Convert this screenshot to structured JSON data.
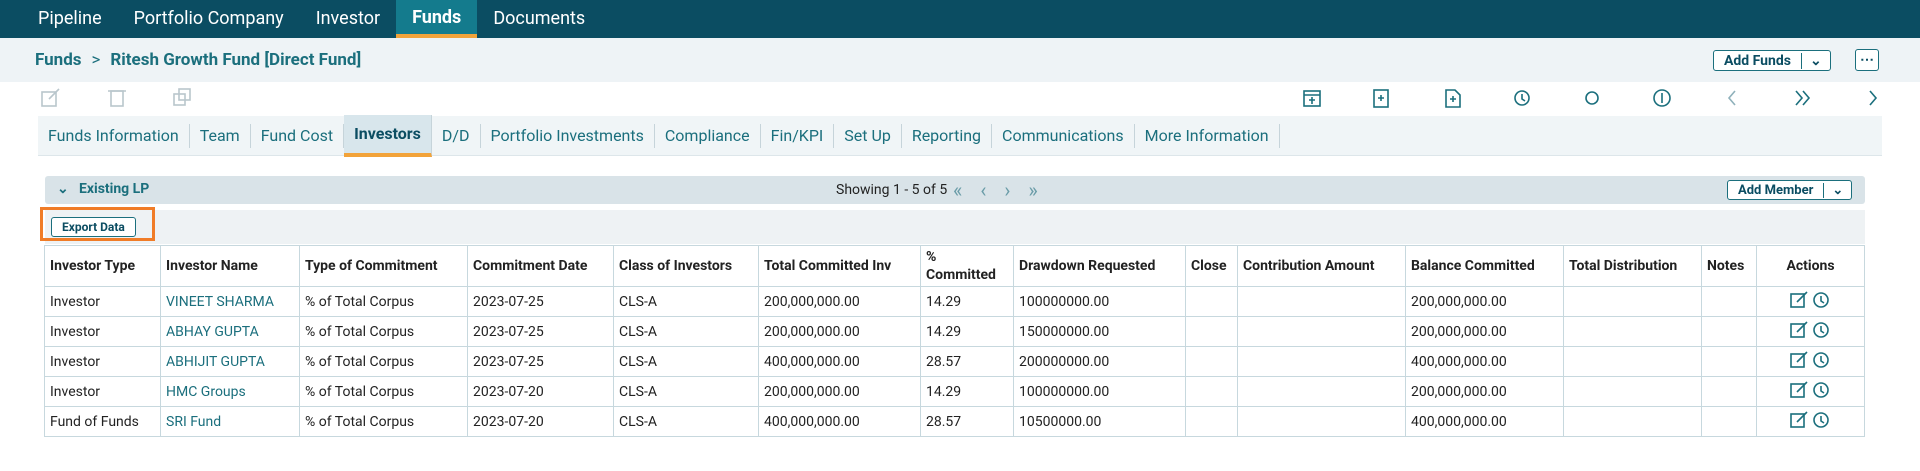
{
  "nav": {
    "items": [
      "Pipeline",
      "Portfolio Company",
      "Investor",
      "Funds",
      "Documents"
    ],
    "active": 3
  },
  "breadcrumb": {
    "root": "Funds",
    "current": "Ritesh Growth Fund [Direct Fund]"
  },
  "actions": {
    "add_funds": "Add Funds"
  },
  "tabs": {
    "items": [
      "Funds Information",
      "Team",
      "Fund Cost",
      "Investors",
      "D/D",
      "Portfolio Investments",
      "Compliance",
      "Fin/KPI",
      "Set Up",
      "Reporting",
      "Communications",
      "More Information"
    ],
    "active": 3
  },
  "section": {
    "title": "Existing LP",
    "pagination": "Showing 1 - 5 of 5",
    "add_member": "Add Member",
    "export": "Export Data"
  },
  "table": {
    "headers": [
      "Investor Type",
      "Investor Name",
      "Type of Commitment",
      "Commitment Date",
      "Class of Investors",
      "Total Committed Inv",
      "% Committed",
      "Drawdown Requested",
      "Close",
      "Contribution Amount",
      "Balance Committed",
      "Total Distribution",
      "Notes",
      "Actions"
    ],
    "rows": [
      [
        "Investor",
        "VINEET SHARMA",
        "% of Total Corpus",
        "2023-07-25",
        "CLS-A",
        "200,000,000.00",
        "14.29",
        "100000000.00",
        "",
        "",
        "200,000,000.00",
        "",
        ""
      ],
      [
        "Investor",
        "ABHAY GUPTA",
        "% of Total Corpus",
        "2023-07-25",
        "CLS-A",
        "200,000,000.00",
        "14.29",
        "150000000.00",
        "",
        "",
        "200,000,000.00",
        "",
        ""
      ],
      [
        "Investor",
        "ABHIJIT GUPTA",
        "% of Total Corpus",
        "2023-07-25",
        "CLS-A",
        "400,000,000.00",
        "28.57",
        "200000000.00",
        "",
        "",
        "400,000,000.00",
        "",
        ""
      ],
      [
        "Investor",
        "HMC Groups",
        "% of Total Corpus",
        "2023-07-20",
        "CLS-A",
        "200,000,000.00",
        "14.29",
        "100000000.00",
        "",
        "",
        "200,000,000.00",
        "",
        ""
      ],
      [
        "Fund of Funds",
        "SRI Fund",
        "% of Total Corpus",
        "2023-07-20",
        "CLS-A",
        "400,000,000.00",
        "28.57",
        "10500000.00",
        "",
        "",
        "400,000,000.00",
        "",
        ""
      ]
    ]
  }
}
